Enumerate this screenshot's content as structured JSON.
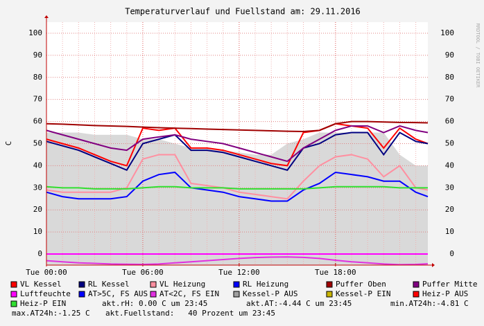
{
  "chart_data": {
    "type": "line",
    "title": "Temperaturverlauf und Fuellstand am: 29.11.2016",
    "ylabel": "C",
    "side_text": "RRDTOOL / TOBI OETIKER",
    "x": [
      0,
      1,
      2,
      3,
      4,
      5,
      6,
      7,
      8,
      9,
      10,
      11,
      12,
      13,
      14,
      15,
      16,
      17,
      18,
      19,
      20,
      21,
      22,
      23,
      23.75
    ],
    "xlim": [
      0,
      23.75
    ],
    "xticks": [
      {
        "value": 0,
        "label": "Tue 00:00"
      },
      {
        "value": 6,
        "label": "Tue 06:00"
      },
      {
        "value": 12,
        "label": "Tue 12:00"
      },
      {
        "value": 18,
        "label": "Tue 18:00"
      }
    ],
    "ylim": [
      -5,
      105
    ],
    "yticks": [
      0,
      10,
      20,
      30,
      40,
      50,
      60,
      70,
      80,
      90,
      100
    ],
    "y2lim": [
      -5,
      105
    ],
    "y2ticks": [
      0,
      10,
      20,
      30,
      40,
      50,
      60,
      70,
      80,
      90,
      100
    ],
    "grid": true,
    "series": [
      {
        "name": "VL Kessel",
        "color": "#ff0000",
        "values": [
          52,
          50,
          48,
          45,
          42,
          40,
          57,
          56,
          57,
          48,
          48,
          47,
          45,
          43,
          41,
          40,
          55,
          56,
          59,
          58,
          57,
          48,
          57,
          52,
          50
        ]
      },
      {
        "name": "RL Kessel",
        "color": "#000080",
        "values": [
          51,
          49,
          47,
          44,
          41,
          38,
          50,
          52,
          54,
          47,
          47,
          46,
          44,
          42,
          40,
          38,
          48,
          50,
          54,
          55,
          55,
          45,
          55,
          51,
          50
        ]
      },
      {
        "name": "VL Heizung",
        "color": "#ff8fa0",
        "values": [
          29,
          28,
          28,
          28,
          28,
          30,
          43,
          45,
          45,
          32,
          31,
          30,
          28,
          27,
          26,
          25,
          33,
          40,
          44,
          45,
          43,
          35,
          40,
          30,
          29
        ]
      },
      {
        "name": "RL Heizung",
        "color": "#0000ff",
        "values": [
          28,
          26,
          25,
          25,
          25,
          26,
          33,
          36,
          37,
          30,
          29,
          28,
          26,
          25,
          24,
          24,
          29,
          32,
          37,
          36,
          35,
          33,
          33,
          28,
          26
        ]
      },
      {
        "name": "Puffer Oben",
        "color": "#a00000",
        "values": [
          59,
          58.8,
          58.5,
          58.2,
          58,
          57.8,
          57.5,
          57.2,
          57,
          56.8,
          56.6,
          56.4,
          56.2,
          56,
          55.8,
          55.6,
          55.5,
          56,
          59,
          60,
          60,
          59.8,
          59.6,
          59.5,
          59.4
        ]
      },
      {
        "name": "Puffer Mitte",
        "color": "#800080",
        "values": [
          56,
          54,
          52,
          50,
          48,
          47,
          52,
          53,
          54,
          52,
          51,
          50,
          48,
          46,
          44,
          42,
          48,
          52,
          56,
          58,
          58,
          55,
          58,
          56,
          55
        ]
      },
      {
        "name": "Luftfeuchte",
        "color": "#ff00ff",
        "values": [
          0,
          0,
          0,
          0,
          0,
          0,
          0,
          0,
          0,
          0,
          0,
          0,
          0,
          0,
          0,
          0,
          0,
          0,
          0,
          0,
          0,
          0,
          0,
          0,
          0
        ]
      },
      {
        "name": "AT>5C, FS AUS",
        "color": "#0000ff"
      },
      {
        "name": "AT<2C, FS EIN",
        "color": "#e030e0",
        "values": [
          -3,
          -3.5,
          -4,
          -4.2,
          -4.5,
          -4.6,
          -4.7,
          -4.5,
          -4,
          -3.5,
          -3,
          -2.5,
          -2,
          -1.6,
          -1.4,
          -1.3,
          -1.5,
          -2,
          -2.8,
          -3.5,
          -4,
          -4.5,
          -4.8,
          -4.7,
          -4.4
        ]
      },
      {
        "name": "Kessel-P AUS",
        "color": "#a0a0a0",
        "type": "area",
        "values": [
          55,
          55,
          55,
          54,
          54,
          54,
          52,
          52,
          50,
          48,
          48,
          47,
          46,
          45,
          45,
          50,
          52,
          55,
          55,
          55,
          55,
          55,
          45,
          40,
          40
        ]
      },
      {
        "name": "Kessel-P EIN",
        "color": "#c8b400"
      },
      {
        "name": "Heiz-P AUS",
        "color": "#ff0000"
      },
      {
        "name": "Heiz-P EIN",
        "color": "#30e030",
        "values": [
          30.5,
          30,
          30,
          29.5,
          29.5,
          29.5,
          30,
          30.5,
          30.5,
          30,
          30,
          30,
          29.5,
          29.5,
          29.5,
          29.5,
          29.5,
          30,
          30.5,
          30.5,
          30.5,
          30.5,
          30,
          30,
          30
        ]
      }
    ],
    "notes": [
      "akt.rH: 0.00 C um 23:45",
      "akt.AT:-4.44 C um 23:45",
      "min.AT24h:-4.81 C",
      "max.AT24h:-1.25 C",
      "akt.Fuellstand:   40 Prozent um 23:45"
    ]
  }
}
